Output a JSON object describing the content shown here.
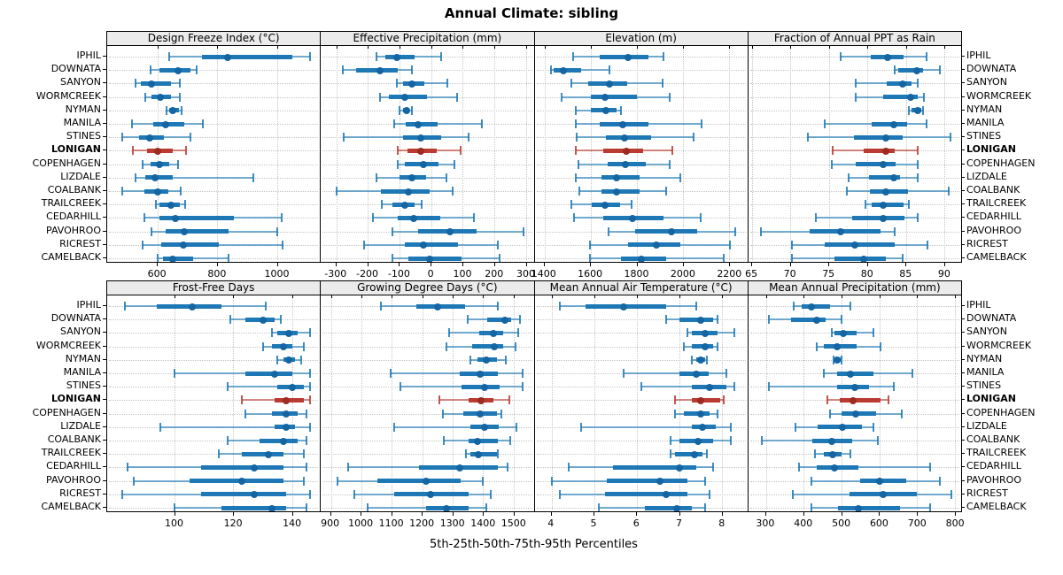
{
  "chart_data": {
    "type": "trellis-dotplot",
    "title": "Annual Climate: sibling",
    "xlabel": "5th-25th-50th-75th-95th Percentiles",
    "legend": "none",
    "grid": "dotted",
    "percentiles_shown": [
      5,
      25,
      50,
      75,
      95
    ],
    "stations": [
      "IPHIL",
      "DOWNATA",
      "SANYON",
      "WORMCREEK",
      "NYMAN",
      "MANILA",
      "STINES",
      "LONIGAN",
      "COPENHAGEN",
      "LIZDALE",
      "COALBANK",
      "TRAILCREEK",
      "CEDARHILL",
      "PAVOHROO",
      "RICREST",
      "CAMELBACK"
    ],
    "highlight_station": "LONIGAN",
    "colors": {
      "series_blue": "#1d78b5",
      "series_blue_dot": "#1565a3",
      "highlight_red": "#b93b31",
      "highlight_red_dot": "#9e2b22",
      "strip_bg": "#ebebeb",
      "grid_line": "#c5c5c5",
      "border": "#000000"
    },
    "panels": [
      {
        "title": "Design Freeze Index (°C)",
        "row": 0,
        "col": 0,
        "xmin": 431,
        "xmax": 1144,
        "ticks": [
          600,
          800,
          1000
        ],
        "values": [
          [
            638,
            750,
            835,
            1050,
            1110
          ],
          [
            575,
            605,
            668,
            710,
            730
          ],
          [
            527,
            545,
            580,
            645,
            673
          ],
          [
            560,
            580,
            608,
            645,
            673
          ],
          [
            630,
            638,
            650,
            670,
            680
          ],
          [
            515,
            585,
            628,
            690,
            752
          ],
          [
            480,
            538,
            573,
            622,
            710
          ],
          [
            518,
            565,
            600,
            650,
            695
          ],
          [
            550,
            575,
            605,
            640,
            668
          ],
          [
            525,
            560,
            590,
            650,
            920
          ],
          [
            480,
            555,
            600,
            635,
            678
          ],
          [
            595,
            605,
            645,
            675,
            692
          ],
          [
            555,
            605,
            660,
            855,
            1015
          ],
          [
            578,
            628,
            690,
            838,
            1000
          ],
          [
            550,
            612,
            685,
            805,
            1020
          ],
          [
            600,
            618,
            652,
            720,
            838
          ]
        ]
      },
      {
        "title": "Effective Precipitation (mm)",
        "row": 0,
        "col": 1,
        "xmin": -349,
        "xmax": 325,
        "ticks": [
          -300,
          -200,
          -100,
          0,
          100,
          200,
          300
        ],
        "values": [
          [
            -172,
            -146,
            -109,
            -51,
            33
          ],
          [
            -279,
            -237,
            -162,
            -107,
            -62
          ],
          [
            -109,
            -88,
            -62,
            -21,
            51
          ],
          [
            -162,
            -135,
            -84,
            -14,
            81
          ],
          [
            -99,
            -90,
            -77,
            -68,
            -60
          ],
          [
            -118,
            -79,
            -40,
            21,
            161
          ],
          [
            -276,
            -88,
            -33,
            33,
            118
          ],
          [
            -107,
            -74,
            -33,
            19,
            93
          ],
          [
            -105,
            -84,
            -25,
            23,
            74
          ],
          [
            -172,
            -99,
            -62,
            -16,
            49
          ],
          [
            -300,
            -160,
            -71,
            -6,
            68
          ],
          [
            -155,
            -123,
            -84,
            -51,
            -31
          ],
          [
            -183,
            -105,
            -56,
            28,
            135
          ],
          [
            -123,
            -40,
            59,
            144,
            293
          ],
          [
            -211,
            -84,
            -25,
            84,
            211
          ],
          [
            -123,
            -71,
            -6,
            96,
            218
          ]
        ]
      },
      {
        "title": "Elevation (m)",
        "row": 0,
        "col": 2,
        "xmin": 1357,
        "xmax": 2278,
        "ticks": [
          1400,
          1600,
          1800,
          2000,
          2200
        ],
        "values": [
          [
            1525,
            1640,
            1763,
            1851,
            1916
          ],
          [
            1427,
            1440,
            1481,
            1560,
            1681
          ],
          [
            1518,
            1590,
            1681,
            1756,
            1911
          ],
          [
            1475,
            1600,
            1662,
            1800,
            1941
          ],
          [
            1535,
            1600,
            1665,
            1713,
            1732
          ],
          [
            1537,
            1640,
            1740,
            1851,
            2079
          ],
          [
            1540,
            1665,
            1748,
            1863,
            2045
          ],
          [
            1537,
            1656,
            1753,
            1826,
            1953
          ],
          [
            1547,
            1673,
            1750,
            1838,
            1941
          ],
          [
            1535,
            1647,
            1710,
            1810,
            1988
          ],
          [
            1552,
            1647,
            1710,
            1810,
            1928
          ],
          [
            1518,
            1606,
            1662,
            1728,
            1778
          ],
          [
            1527,
            1653,
            1782,
            1916,
            2074
          ],
          [
            1677,
            1794,
            1948,
            2061,
            2226
          ],
          [
            1597,
            1760,
            1886,
            1986,
            2204
          ],
          [
            1597,
            1732,
            1820,
            1928,
            2174
          ]
        ]
      },
      {
        "title": "Fraction of Annual PPT as Rain",
        "row": 0,
        "col": 3,
        "xmin": 64.5,
        "xmax": 92.2,
        "ticks": [
          65,
          70,
          75,
          80,
          85,
          90
        ],
        "values": [
          [
            76.5,
            80.4,
            82.6,
            84.7,
            87.7
          ],
          [
            83.5,
            84.0,
            86.4,
            87.2,
            89.4
          ],
          [
            78.5,
            82.5,
            84.6,
            85.8,
            86.5
          ],
          [
            78.5,
            82.0,
            85.6,
            86.6,
            87.4
          ],
          [
            85.4,
            85.7,
            86.5,
            87.0,
            87.2
          ],
          [
            74.4,
            80.5,
            83.4,
            85.2,
            87.7
          ],
          [
            72.2,
            78.2,
            82.4,
            84.6,
            90.8
          ],
          [
            75.5,
            79.5,
            82.4,
            83.6,
            86.5
          ],
          [
            75.4,
            78.5,
            82.1,
            83.7,
            86.5
          ],
          [
            77.5,
            80.2,
            83.4,
            84.2,
            86.5
          ],
          [
            77.3,
            80.3,
            82.4,
            85.3,
            90.6
          ],
          [
            79.8,
            80.5,
            82.0,
            84.7,
            85.4
          ],
          [
            73.3,
            78.0,
            82.0,
            84.8,
            86.5
          ],
          [
            66.2,
            72.5,
            76.5,
            81.7,
            83.6
          ],
          [
            70.2,
            74.4,
            78.4,
            83.6,
            87.8
          ],
          [
            70.2,
            75.7,
            79.5,
            82.4,
            84.6
          ]
        ]
      },
      {
        "title": "Frost-Free Days",
        "row": 1,
        "col": 0,
        "xmin": 77,
        "xmax": 149.5,
        "ticks": [
          100,
          120,
          140
        ],
        "values": [
          [
            83,
            94,
            106,
            116,
            131
          ],
          [
            119,
            124,
            130,
            134,
            136
          ],
          [
            133,
            135,
            139,
            142,
            146
          ],
          [
            130,
            133,
            137,
            140,
            144
          ],
          [
            135,
            137,
            139,
            141,
            143
          ],
          [
            100,
            124,
            134,
            140,
            146
          ],
          [
            118,
            135,
            140,
            144,
            146
          ],
          [
            123,
            134,
            138,
            144,
            146
          ],
          [
            124,
            133,
            138,
            142,
            145
          ],
          [
            95,
            134,
            138,
            141,
            146
          ],
          [
            118,
            129,
            137,
            142,
            145
          ],
          [
            115,
            123,
            132,
            137,
            144
          ],
          [
            84,
            109,
            127,
            137,
            145
          ],
          [
            86,
            105,
            123,
            137,
            144
          ],
          [
            82,
            109,
            127,
            138,
            146
          ],
          [
            100,
            116,
            133,
            138,
            145
          ]
        ]
      },
      {
        "title": "Growing Degree Days (°C)",
        "row": 1,
        "col": 1,
        "xmin": 867,
        "xmax": 1566,
        "ticks": [
          900,
          1000,
          1100,
          1200,
          1300,
          1400,
          1500
        ],
        "values": [
          [
            1065,
            1180,
            1250,
            1340,
            1448
          ],
          [
            1350,
            1412,
            1470,
            1492,
            1520
          ],
          [
            1287,
            1386,
            1434,
            1467,
            1515
          ],
          [
            1280,
            1364,
            1436,
            1465,
            1505
          ],
          [
            1357,
            1380,
            1409,
            1444,
            1473
          ],
          [
            1097,
            1323,
            1390,
            1448,
            1530
          ],
          [
            1128,
            1328,
            1405,
            1453,
            1530
          ],
          [
            1255,
            1351,
            1393,
            1434,
            1486
          ],
          [
            1268,
            1335,
            1390,
            1445,
            1460
          ],
          [
            1107,
            1357,
            1405,
            1450,
            1510
          ],
          [
            1270,
            1351,
            1380,
            1448,
            1489
          ],
          [
            1344,
            1357,
            1383,
            1444,
            1448
          ],
          [
            956,
            1190,
            1323,
            1448,
            1479
          ],
          [
            921,
            1053,
            1213,
            1325,
            1398
          ],
          [
            976,
            1107,
            1226,
            1351,
            1424
          ],
          [
            1020,
            1213,
            1280,
            1351,
            1409
          ]
        ]
      },
      {
        "title": "Mean Annual Air Temperature (°C)",
        "row": 1,
        "col": 2,
        "xmin": 3.6,
        "xmax": 8.6,
        "ticks": [
          4,
          5,
          6,
          7,
          8
        ],
        "values": [
          [
            4.2,
            4.8,
            5.7,
            6.7,
            7.4
          ],
          [
            6.7,
            7.0,
            7.5,
            7.8,
            7.9
          ],
          [
            7.2,
            7.3,
            7.6,
            7.9,
            8.3
          ],
          [
            7.1,
            7.3,
            7.6,
            7.8,
            7.9
          ],
          [
            7.3,
            7.4,
            7.5,
            7.6,
            7.65
          ],
          [
            5.7,
            7.0,
            7.4,
            7.7,
            8.1
          ],
          [
            6.1,
            7.3,
            7.7,
            8.1,
            8.3
          ],
          [
            6.9,
            7.3,
            7.5,
            7.95,
            8.05
          ],
          [
            6.9,
            7.1,
            7.5,
            7.7,
            7.9
          ],
          [
            4.7,
            7.3,
            7.55,
            7.85,
            8.2
          ],
          [
            6.8,
            7.0,
            7.45,
            7.8,
            8.2
          ],
          [
            6.8,
            6.9,
            7.35,
            7.55,
            7.65
          ],
          [
            4.4,
            5.45,
            7.0,
            7.4,
            7.8
          ],
          [
            4.0,
            5.3,
            6.55,
            7.2,
            7.6
          ],
          [
            4.2,
            5.25,
            6.7,
            7.2,
            7.7
          ],
          [
            5.1,
            6.2,
            6.95,
            7.3,
            7.6
          ]
        ]
      },
      {
        "title": "Mean Annual Precipitation (mm)",
        "row": 1,
        "col": 3,
        "xmin": 253,
        "xmax": 816,
        "ticks": [
          300,
          400,
          500,
          600,
          700,
          800
        ],
        "values": [
          [
            372,
            395,
            420,
            470,
            523
          ],
          [
            307,
            367,
            434,
            458,
            500
          ],
          [
            473,
            481,
            505,
            539,
            583
          ],
          [
            434,
            453,
            487,
            539,
            602
          ],
          [
            479,
            481,
            489,
            497,
            500
          ],
          [
            453,
            489,
            523,
            583,
            687
          ],
          [
            307,
            487,
            534,
            573,
            637
          ],
          [
            463,
            494,
            531,
            602,
            625
          ],
          [
            469,
            500,
            536,
            590,
            660
          ],
          [
            378,
            436,
            502,
            553,
            584
          ],
          [
            289,
            422,
            473,
            528,
            596
          ],
          [
            430,
            453,
            477,
            500,
            523
          ],
          [
            388,
            434,
            481,
            544,
            735
          ],
          [
            420,
            550,
            600,
            670,
            760
          ],
          [
            370,
            520,
            610,
            700,
            790
          ],
          [
            420,
            490,
            545,
            655,
            735
          ]
        ]
      }
    ]
  }
}
